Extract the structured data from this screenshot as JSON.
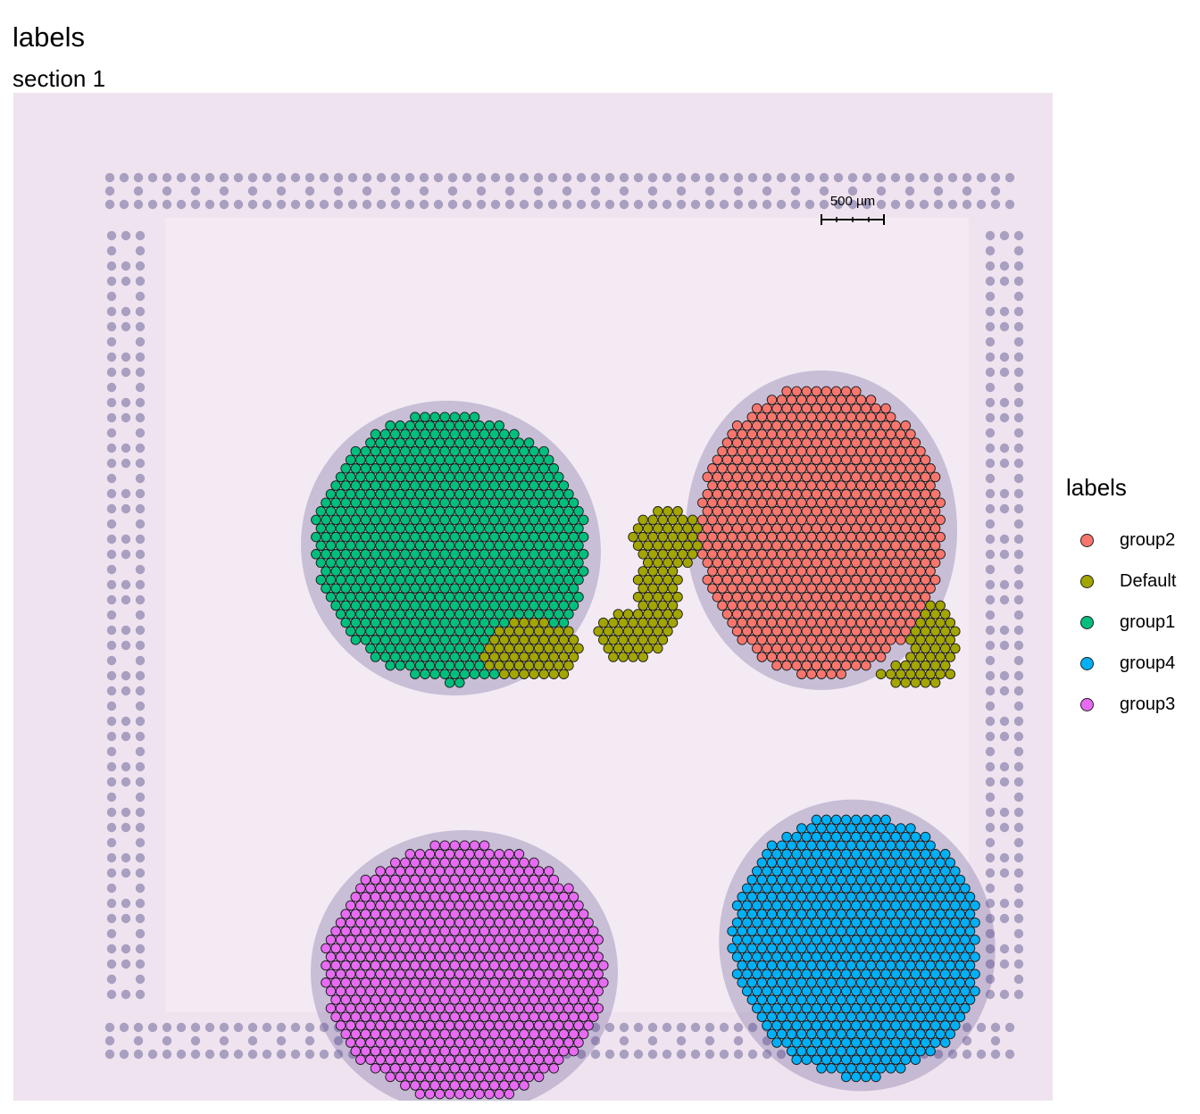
{
  "title": "labels",
  "subtitle": "section 1",
  "scalebar": {
    "label": "500 µm"
  },
  "legend": {
    "title": "labels",
    "items": [
      {
        "label": "group2",
        "color": "#F8766D"
      },
      {
        "label": "Default",
        "color": "#A3A500"
      },
      {
        "label": "group1",
        "color": "#00BF7D"
      },
      {
        "label": "group4",
        "color": "#00B0F6"
      },
      {
        "label": "group3",
        "color": "#E76BF3"
      }
    ]
  },
  "chart_data": {
    "type": "scatter",
    "title": "labels",
    "subtitle": "section 1",
    "background": "tissue section image",
    "legend_placement": "right",
    "series": [
      {
        "name": "group2",
        "color": "#F8766D",
        "region": {
          "shape": "ellipse",
          "cx": 905,
          "cy": 490,
          "rx": 138,
          "ry": 165
        }
      },
      {
        "name": "Default",
        "color": "#A3A500",
        "region": {
          "shape": "strand"
        }
      },
      {
        "name": "group1",
        "color": "#00BF7D",
        "region": {
          "shape": "ellipse",
          "cx": 490,
          "cy": 510,
          "rx": 155,
          "ry": 150,
          "rotate": 28
        }
      },
      {
        "name": "group4",
        "color": "#00B0F6",
        "region": {
          "shape": "ellipse",
          "cx": 945,
          "cy": 955,
          "rx": 140,
          "ry": 150,
          "rotate": -15
        }
      },
      {
        "name": "group3",
        "color": "#E76BF3",
        "region": {
          "shape": "ellipse",
          "cx": 505,
          "cy": 985,
          "rx": 158,
          "ry": 145
        }
      }
    ]
  }
}
